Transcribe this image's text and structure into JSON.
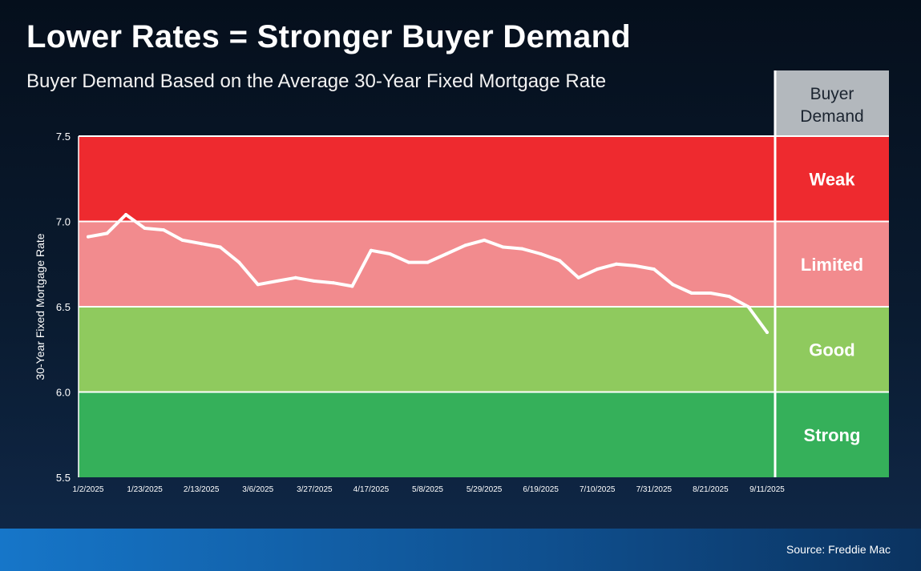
{
  "header": {
    "title": "Lower Rates = Stronger Buyer Demand",
    "subtitle": "Buyer Demand Based on the Average 30-Year Fixed Mortgage Rate"
  },
  "footer": {
    "source": "Source: Freddie Mac"
  },
  "colors": {
    "weak": "#ee2a2f",
    "limited": "#f28b8e",
    "good": "#8fca5e",
    "strong": "#35b05a",
    "header_cell": "#b3b8bd",
    "line": "#ffffff"
  },
  "chart_data": {
    "type": "line",
    "title": "Lower Rates = Stronger Buyer Demand",
    "subtitle": "Buyer Demand Based on the Average 30-Year Fixed Mortgage Rate",
    "xlabel": "",
    "ylabel": "30-Year Fixed Mortgage Rate",
    "ylim": [
      5.5,
      7.5
    ],
    "yticks": [
      "5.5",
      "6.0",
      "6.5",
      "7.0",
      "7.5"
    ],
    "xtick_labels": [
      "1/2/2025",
      "1/23/2025",
      "2/13/2025",
      "3/6/2025",
      "3/27/2025",
      "4/17/2025",
      "5/8/2025",
      "5/29/2025",
      "6/19/2025",
      "7/10/2025",
      "7/31/2025",
      "8/21/2025",
      "9/11/2025"
    ],
    "series": [
      {
        "name": "30-Year Fixed Mortgage Rate",
        "x": [
          "1/2/2025",
          "1/9/2025",
          "1/16/2025",
          "1/23/2025",
          "1/30/2025",
          "2/6/2025",
          "2/13/2025",
          "2/20/2025",
          "2/27/2025",
          "3/6/2025",
          "3/13/2025",
          "3/20/2025",
          "3/27/2025",
          "4/3/2025",
          "4/10/2025",
          "4/17/2025",
          "4/24/2025",
          "5/1/2025",
          "5/8/2025",
          "5/15/2025",
          "5/22/2025",
          "5/29/2025",
          "6/5/2025",
          "6/12/2025",
          "6/19/2025",
          "6/26/2025",
          "7/3/2025",
          "7/10/2025",
          "7/17/2025",
          "7/24/2025",
          "7/31/2025",
          "8/7/2025",
          "8/14/2025",
          "8/21/2025",
          "8/28/2025",
          "9/4/2025",
          "9/11/2025"
        ],
        "values": [
          6.91,
          6.93,
          7.04,
          6.96,
          6.95,
          6.89,
          6.87,
          6.85,
          6.76,
          6.63,
          6.65,
          6.67,
          6.65,
          6.64,
          6.62,
          6.83,
          6.81,
          6.76,
          6.76,
          6.81,
          6.86,
          6.89,
          6.85,
          6.84,
          6.81,
          6.77,
          6.67,
          6.72,
          6.75,
          6.74,
          6.72,
          6.63,
          6.58,
          6.58,
          6.56,
          6.5,
          6.35
        ]
      }
    ],
    "bands": [
      {
        "label": "Weak",
        "from": 7.0,
        "to": 7.5
      },
      {
        "label": "Limited",
        "from": 6.5,
        "to": 7.0
      },
      {
        "label": "Good",
        "from": 6.0,
        "to": 6.5
      },
      {
        "label": "Strong",
        "from": 5.5,
        "to": 6.0
      }
    ],
    "legend_header": "Buyer Demand",
    "legend_placement": "right"
  }
}
